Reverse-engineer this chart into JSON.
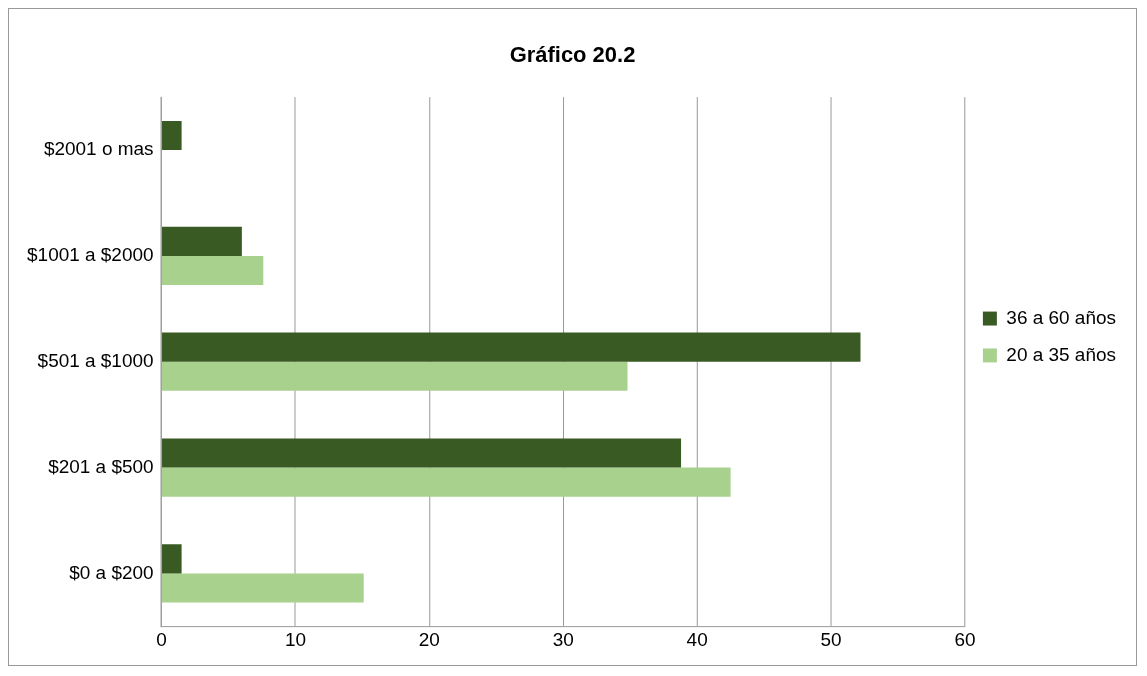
{
  "chart_data": {
    "type": "bar",
    "orientation": "horizontal",
    "title": "Gráfico 20.2",
    "categories": [
      "$2001 o mas",
      "$1001 a $2000",
      "$501 a $1000",
      "$201 a $500",
      "$0 a $200"
    ],
    "series": [
      {
        "name": "36 a 60 años",
        "color": "#3a5a24",
        "values": [
          1.5,
          6.0,
          52.2,
          38.8,
          1.5
        ]
      },
      {
        "name": "20 a 35 años",
        "color": "#a9d18e",
        "values": [
          0,
          7.6,
          34.8,
          42.5,
          15.1
        ]
      }
    ],
    "xlim": [
      0,
      60
    ],
    "xticks": [
      0,
      10,
      20,
      30,
      40,
      50,
      60
    ],
    "grid": "x",
    "legend": "right"
  }
}
